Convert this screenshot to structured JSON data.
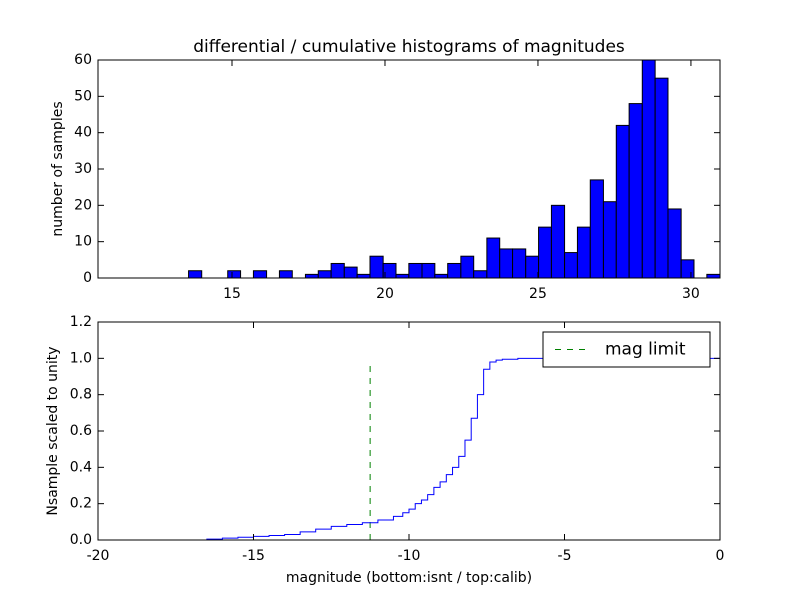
{
  "chart_data": [
    {
      "type": "histogram",
      "title": "differential / cumulative histograms of magnitudes",
      "ylabel": "number of samples",
      "bins": [
        10.62,
        11.04,
        11.47,
        11.89,
        12.31,
        12.74,
        13.16,
        13.58,
        14.01,
        14.43,
        14.86,
        15.28,
        15.7,
        16.13,
        16.55,
        16.97,
        17.4,
        17.82,
        18.24,
        18.67,
        19.09,
        19.51,
        19.94,
        20.36,
        20.78,
        21.21,
        21.63,
        22.05,
        22.48,
        22.9,
        23.33,
        23.75,
        24.17,
        24.6,
        25.02,
        25.44,
        25.87,
        26.29,
        26.71,
        27.14,
        27.56,
        27.98,
        28.41,
        28.83,
        29.25,
        29.68,
        30.1,
        30.52,
        30.95
      ],
      "values": [
        0,
        0,
        0,
        0,
        0,
        0,
        0,
        2,
        0,
        0,
        2,
        0,
        2,
        0,
        2,
        0,
        1,
        2,
        4,
        3,
        1,
        6,
        4,
        1,
        4,
        4,
        1,
        4,
        6,
        2,
        11,
        8,
        8,
        6,
        14,
        20,
        7,
        14,
        27,
        21,
        42,
        48,
        60,
        55,
        19,
        5,
        0,
        1
      ],
      "color": "#0000ff",
      "edgecolor": "#000000",
      "xlim": [
        10.62,
        30.95
      ],
      "xticks": [
        15,
        20,
        25,
        30
      ],
      "ylim": [
        0,
        60
      ],
      "yticks": [
        0,
        10,
        20,
        30,
        40,
        50,
        60
      ]
    },
    {
      "type": "line",
      "step": "post",
      "xlabel": "magnitude (bottom:isnt / top:calib)",
      "ylabel": "Nsample scaled to unity",
      "x": [
        -20,
        -16.5,
        -16,
        -15.5,
        -15,
        -14.5,
        -14,
        -13.5,
        -13,
        -12.5,
        -12,
        -11.5,
        -11,
        -10.5,
        -10.2,
        -10,
        -9.8,
        -9.6,
        -9.4,
        -9.2,
        -9,
        -8.8,
        -8.6,
        -8.4,
        -8.2,
        -8,
        -7.8,
        -7.6,
        -7.4,
        -7.2,
        -7,
        -6.5,
        -6,
        -5,
        0,
        0
      ],
      "series": [
        {
          "color": "#0000ff",
          "values": [
            0,
            0.005,
            0.01,
            0.015,
            0.02,
            0.025,
            0.03,
            0.045,
            0.06,
            0.075,
            0.085,
            0.095,
            0.11,
            0.13,
            0.15,
            0.17,
            0.2,
            0.22,
            0.25,
            0.29,
            0.32,
            0.36,
            0.4,
            0.46,
            0.55,
            0.67,
            0.8,
            0.94,
            0.98,
            0.99,
            0.995,
            1.0,
            1.0,
            1.0,
            1.0,
            0
          ]
        }
      ],
      "vlines": [
        {
          "name": "mag limit",
          "color": "#008000",
          "linestyle": "dashed",
          "x": -11.25,
          "ymax": 0.97
        }
      ],
      "legend": "upper right",
      "xlim": [
        -20,
        0
      ],
      "xticks": [
        -20,
        -15,
        -10,
        -5,
        0
      ],
      "ylim": [
        0,
        1.2
      ],
      "yticks": [
        {
          "value": 0,
          "label": "0.0"
        },
        {
          "value": 0.2,
          "label": "0.2"
        },
        {
          "value": 0.4,
          "label": "0.4"
        },
        {
          "value": 0.6,
          "label": "0.6"
        },
        {
          "value": 0.8,
          "label": "0.8"
        },
        {
          "value": 1.0,
          "label": "1.0"
        },
        {
          "value": 1.2,
          "label": "1.2"
        }
      ]
    }
  ]
}
